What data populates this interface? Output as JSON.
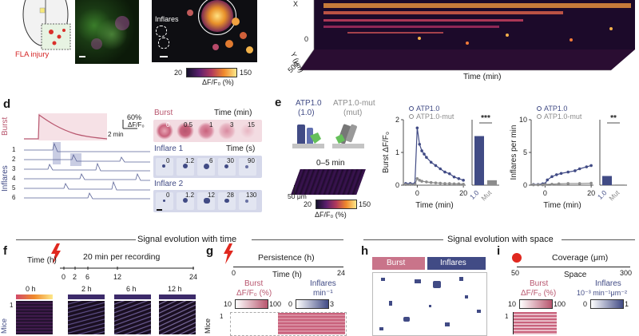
{
  "colors": {
    "burst": "#b8566e",
    "inflares": "#414b85",
    "mut": "#8c8c8c",
    "lightning": "#e0281f"
  },
  "top": {
    "fla_injury": "FLA injury",
    "inflares_label": "Inflares",
    "cbar_min": "20",
    "cbar_max": "150",
    "cbar_unit": "ΔF/F₀ (%)",
    "axis_x": "X",
    "axis_y": "Y (μm)",
    "y_tick_0": "0",
    "y_tick_500": "500",
    "axis_time": "Time (min)"
  },
  "panel_d": {
    "label": "d",
    "scale_pct": "60%",
    "scale_df": "ΔF/F₀",
    "scale_time": "2 min",
    "burst": "Burst",
    "inflares": "Inflares",
    "rows": [
      "1",
      "2",
      "3",
      "4",
      "5",
      "6"
    ],
    "burst_title": "Burst",
    "burst_time": "Time (min)",
    "burst_ticks": [
      "0",
      "0.5",
      "1",
      "3",
      "15"
    ],
    "inflare1_title": "Inflare 1",
    "inflare1_time": "Time (s)",
    "inflare1_ticks": [
      "0",
      "1.2",
      "6",
      "30",
      "90"
    ],
    "inflare2_title": "Inflare 2",
    "inflare2_ticks": [
      "0",
      "1.2",
      "12",
      "28",
      "130"
    ]
  },
  "panel_e": {
    "label": "e",
    "atp_name": "ATP1.0",
    "atp_sub": "(1.0)",
    "mut_name": "ATP1.0-mut",
    "mut_sub": "(mut)",
    "window": "0–5 min",
    "scale": "50 μm",
    "cbar_min": "20",
    "cbar_max": "150",
    "cbar_unit": "ΔF/F₀ (%)"
  },
  "chart_data": [
    {
      "type": "line",
      "title": "",
      "ylabel": "Burst ΔF/F₀",
      "xlabel": "Time (min)",
      "xlim": [
        -6,
        21
      ],
      "ylim": [
        0,
        2
      ],
      "xticks": [
        "0",
        "20"
      ],
      "yticks": [
        "0",
        "1",
        "2"
      ],
      "legend": [
        "ATP1.0",
        "ATP1.0-mut"
      ],
      "significance": "***",
      "series": [
        {
          "name": "ATP1.0",
          "x": [
            -5,
            -3,
            -1,
            0,
            1,
            2,
            3,
            4,
            6,
            8,
            10,
            12,
            14,
            16,
            18,
            20
          ],
          "y": [
            0.05,
            0.05,
            0.05,
            1.75,
            1.25,
            1.05,
            0.95,
            0.85,
            0.7,
            0.6,
            0.5,
            0.4,
            0.35,
            0.25,
            0.2,
            0.15
          ]
        },
        {
          "name": "ATP1.0-mut",
          "x": [
            -5,
            -3,
            -1,
            0,
            1,
            2,
            4,
            6,
            8,
            10,
            12,
            14,
            16,
            18,
            20
          ],
          "y": [
            0.02,
            0.02,
            0.02,
            0.2,
            0.15,
            0.12,
            0.1,
            0.08,
            0.07,
            0.06,
            0.05,
            0.05,
            0.04,
            0.04,
            0.03
          ]
        }
      ],
      "bars": {
        "categories": [
          "1.0",
          "Mut"
        ],
        "values": [
          1.5,
          0.15
        ]
      }
    },
    {
      "type": "line",
      "title": "",
      "ylabel": "Inflares per min",
      "xlabel": "Time (min)",
      "xlim": [
        -6,
        21
      ],
      "ylim": [
        0,
        10
      ],
      "xticks": [
        "0",
        "20"
      ],
      "yticks": [
        "0",
        "5",
        "10"
      ],
      "legend": [
        "ATP1.0",
        "ATP1.0-mut"
      ],
      "significance": "**",
      "series": [
        {
          "name": "ATP1.0",
          "x": [
            -5,
            -3,
            -1,
            0,
            1,
            3,
            5,
            7,
            10,
            13,
            15,
            18,
            20
          ],
          "y": [
            0.1,
            0.1,
            0.2,
            0.2,
            0.8,
            1.3,
            1.6,
            1.8,
            2.0,
            2.2,
            2.5,
            2.8,
            3.0
          ]
        },
        {
          "name": "ATP1.0-mut",
          "x": [
            -5,
            -3,
            -1,
            0,
            3,
            6,
            10,
            15,
            20
          ],
          "y": [
            0.05,
            0.05,
            0.05,
            0.1,
            0.15,
            0.2,
            0.25,
            0.25,
            0.3
          ]
        }
      ],
      "bars": {
        "categories": [
          "1.0",
          "Mut"
        ],
        "values": [
          1.4,
          0.1
        ]
      }
    }
  ],
  "section_time": {
    "title": "Signal evolution with time",
    "f_label": "f",
    "time_h": "Time (h)",
    "per_recording": "20 min per recording",
    "ticks": [
      "0",
      "2",
      "6",
      "12",
      "24"
    ],
    "frames": [
      "0 h",
      "2 h",
      "6 h",
      "12 h"
    ],
    "row": "1",
    "side": "Mice",
    "g_label": "g",
    "persistence": "Persistence (h)",
    "g_ticks": [
      "0",
      "24"
    ],
    "g_time": "Time (h)",
    "burst": "Burst",
    "burst_unit": "ΔF/F₀ (%)",
    "inflares": "Inflares",
    "inflares_unit": "min⁻¹",
    "cb1_min": "10",
    "cb1_max": "100",
    "cb2_min": "0",
    "cb2_max": "3",
    "g_side": "Mice",
    "g_row": "1"
  },
  "section_space": {
    "title": "Signal evolution with space",
    "h_label": "h",
    "burst": "Burst",
    "inflares": "Inflares",
    "i_label": "i",
    "coverage": "Coverage (μm)",
    "i_tick0": "50",
    "i_tick1": "300",
    "space": "Space",
    "burst_unit": "ΔF/F₀ (%)",
    "inflares_unit": "10⁻³ min⁻¹μm⁻²",
    "cb1_min": "10",
    "cb1_max": "100",
    "cb2_min": "0",
    "cb2_max": "1",
    "i_row": "1"
  }
}
